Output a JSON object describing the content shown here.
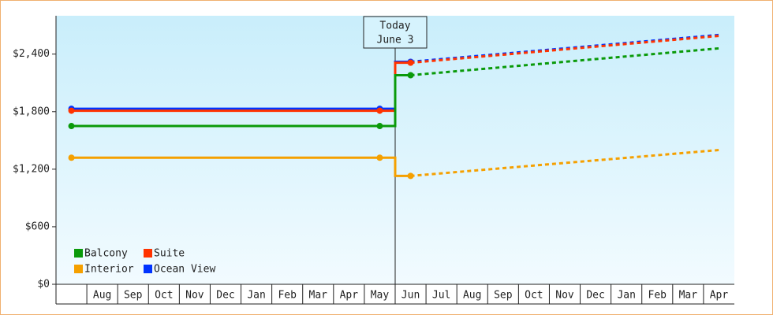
{
  "chart_data": {
    "type": "line",
    "annotation": [
      "Today",
      "June 3"
    ],
    "categories": [
      null,
      "Aug",
      "Sep",
      "Oct",
      "Nov",
      "Dec",
      "Jan",
      "Feb",
      "Mar",
      "Apr",
      "May",
      "Jun",
      "Jul",
      "Aug",
      "Sep",
      "Oct",
      "Nov",
      "Dec",
      "Jan",
      "Feb",
      "Mar",
      "Apr"
    ],
    "series": [
      {
        "name": "Balcony",
        "color": "#0a9a0a",
        "values": [
          1650,
          1650,
          1650,
          1650,
          1650,
          1650,
          1650,
          1650,
          1650,
          1650,
          1650,
          null,
          null,
          null,
          null,
          null,
          null,
          null,
          null,
          null,
          null,
          null
        ],
        "forecast": [
          null,
          null,
          null,
          null,
          null,
          null,
          null,
          null,
          null,
          null,
          null,
          2180,
          2208,
          2236,
          2264,
          2292,
          2320,
          2348,
          2376,
          2404,
          2432,
          2460
        ]
      },
      {
        "name": "Suite",
        "color": "#ff3300",
        "values": [
          1810,
          1810,
          1810,
          1810,
          1810,
          1810,
          1810,
          1810,
          1810,
          1810,
          1810,
          null,
          null,
          null,
          null,
          null,
          null,
          null,
          null,
          null,
          null,
          null
        ],
        "forecast": [
          null,
          null,
          null,
          null,
          null,
          null,
          null,
          null,
          null,
          null,
          null,
          2310,
          2338,
          2366,
          2394,
          2422,
          2450,
          2478,
          2506,
          2534,
          2562,
          2590
        ]
      },
      {
        "name": "Interior",
        "color": "#f5a000",
        "values": [
          1320,
          1320,
          1320,
          1320,
          1320,
          1320,
          1320,
          1320,
          1320,
          1320,
          1320,
          null,
          null,
          null,
          null,
          null,
          null,
          null,
          null,
          null,
          null,
          null
        ],
        "forecast": [
          null,
          null,
          null,
          null,
          null,
          null,
          null,
          null,
          null,
          null,
          null,
          1130,
          1157,
          1184,
          1211,
          1238,
          1265,
          1292,
          1319,
          1346,
          1373,
          1400
        ]
      },
      {
        "name": "Ocean View",
        "color": "#0033ff",
        "values": [
          1830,
          1830,
          1830,
          1830,
          1830,
          1830,
          1830,
          1830,
          1830,
          1830,
          1830,
          null,
          null,
          null,
          null,
          null,
          null,
          null,
          null,
          null,
          null,
          null
        ],
        "forecast": [
          null,
          null,
          null,
          null,
          null,
          null,
          null,
          null,
          null,
          null,
          null,
          2320,
          2348,
          2376,
          2404,
          2432,
          2460,
          2488,
          2516,
          2544,
          2572,
          2600
        ]
      }
    ],
    "ylim": [
      0,
      2800
    ],
    "yticks": [
      {
        "value": 0,
        "label": "$0"
      },
      {
        "value": 600,
        "label": "$600"
      },
      {
        "value": 1200,
        "label": "$1,200"
      },
      {
        "value": 1800,
        "label": "$1,800"
      },
      {
        "value": 2400,
        "label": "$2,400"
      }
    ],
    "grid": false
  }
}
